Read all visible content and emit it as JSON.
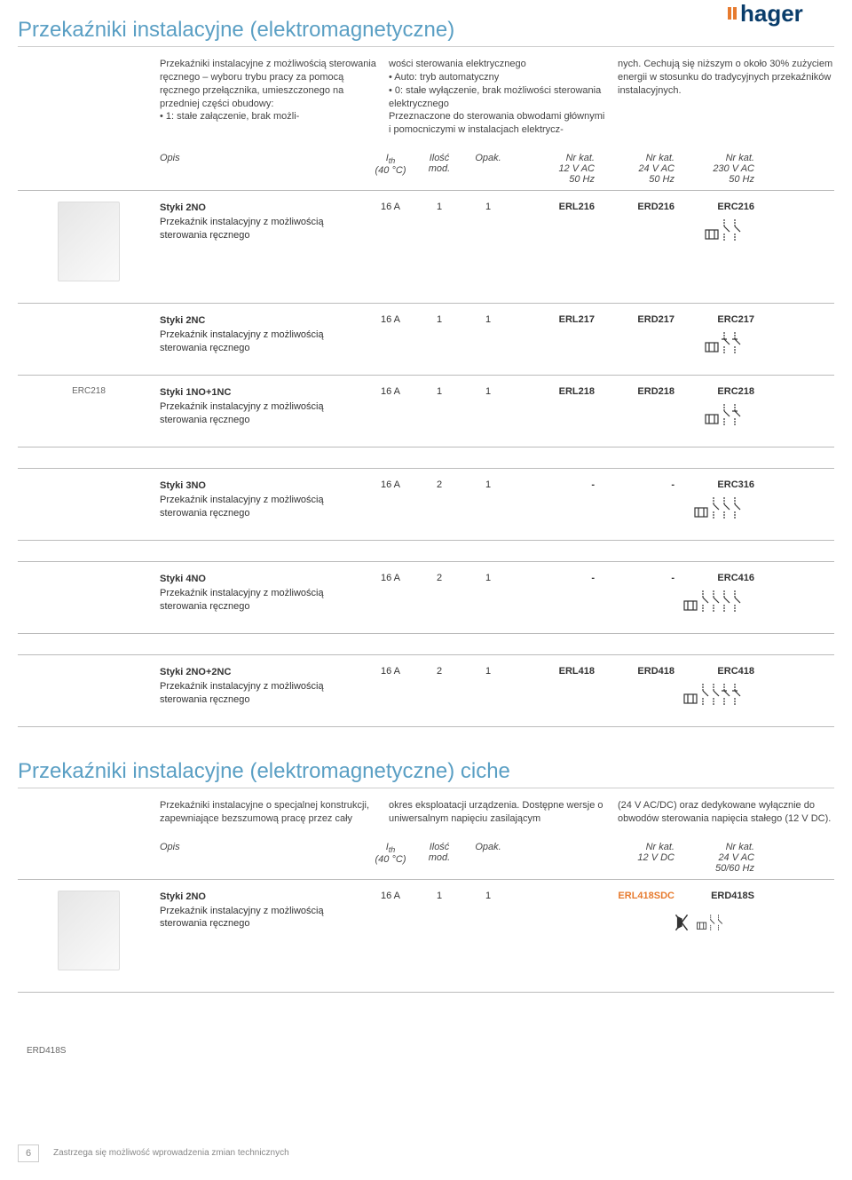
{
  "logo": {
    "brand": "hager",
    "dot_color": "#e77b2f",
    "text_color": "#0a3d6b"
  },
  "section1": {
    "title": "Przekaźniki instalacyjne (elektromagnetyczne)",
    "intro_col1": "Przekaźniki instalacyjne z możliwością sterowania ręcznego – wyboru trybu pracy za pomocą ręcznego przełącznika, umieszczonego na przedniej części obudowy:\n• 1: stałe załączenie, brak możli-",
    "intro_col2": "wości sterowania elektrycznego\n• Auto: tryb automatyczny\n• 0: stałe wyłączenie, brak możliwości sterowania elektrycznego\nPrzeznaczone do sterowania obwodami głównymi i pomocniczymi w instalacjach elektrycz-",
    "intro_col3": "nych. Cechują się niższym o około 30% zużyciem energii w stosunku do tradycyjnych przekaźników instalacyjnych.",
    "head": {
      "opis": "Opis",
      "ith_html": "I",
      "ith_sub": "th",
      "ith_line2": "(40 °C)",
      "ilosc": "Ilość",
      "ilosc_line2": "mod.",
      "opak": "Opak.",
      "cat1": "Nr kat.",
      "cat1_sub": "12 V AC\n50 Hz",
      "cat2": "Nr kat.",
      "cat2_sub": "24 V AC\n50 Hz",
      "cat3": "Nr kat.",
      "cat3_sub": "230 V AC\n50 Hz"
    },
    "rows": [
      {
        "name": "Styki 2NO",
        "desc": "Przekaźnik instalacyjny z możliwością sterowania ręcznego",
        "ith": "16 A",
        "mod": "1",
        "opak": "1",
        "c1": "ERL216",
        "c2": "ERD216",
        "c3": "ERC216",
        "sym": "2NO",
        "img": true,
        "img_label": ""
      },
      {
        "name": "Styki 2NC",
        "desc": "Przekaźnik instalacyjny z możliwością sterowania ręcznego",
        "ith": "16 A",
        "mod": "1",
        "opak": "1",
        "c1": "ERL217",
        "c2": "ERD217",
        "c3": "ERC217",
        "sym": "2NC",
        "img": false,
        "img_label": ""
      },
      {
        "name": "Styki 1NO+1NC",
        "desc": "Przekaźnik instalacyjny z możliwością sterowania ręcznego",
        "ith": "16 A",
        "mod": "1",
        "opak": "1",
        "c1": "ERL218",
        "c2": "ERD218",
        "c3": "ERC218",
        "sym": "1NO1NC",
        "img": false,
        "img_label": "ERC218",
        "gap_after": true
      },
      {
        "name": "Styki 3NO",
        "desc": "Przekaźnik instalacyjny z możliwością sterowania ręcznego",
        "ith": "16 A",
        "mod": "2",
        "opak": "1",
        "c1": "-",
        "c2": "-",
        "c3": "ERC316",
        "sym": "3NO",
        "img": false,
        "img_label": "",
        "gap_after": true
      },
      {
        "name": "Styki 4NO",
        "desc": "Przekaźnik instalacyjny z możliwością sterowania ręcznego",
        "ith": "16 A",
        "mod": "2",
        "opak": "1",
        "c1": "-",
        "c2": "-",
        "c3": "ERC416",
        "sym": "4NO",
        "img": false,
        "img_label": "",
        "gap_after": true
      },
      {
        "name": "Styki 2NO+2NC",
        "desc": "Przekaźnik instalacyjny z możliwością sterowania ręcznego",
        "ith": "16 A",
        "mod": "2",
        "opak": "1",
        "c1": "ERL418",
        "c2": "ERD418",
        "c3": "ERC418",
        "sym": "2NO2NC",
        "img": false,
        "img_label": ""
      }
    ]
  },
  "section2": {
    "title": "Przekaźniki instalacyjne (elektromagnetyczne) ciche",
    "intro_col1": "Przekaźniki instalacyjne o specjalnej konstrukcji, zapewniające bezszumową pracę przez cały",
    "intro_col2": "okres eksploatacji urządzenia. Dostępne wersje o uniwersalnym napięciu zasilającym",
    "intro_col3": "(24 V AC/DC) oraz dedykowane wyłącznie do obwodów sterowania napięcia stałego (12 V DC).",
    "head": {
      "opis": "Opis",
      "ith_html": "I",
      "ith_sub": "th",
      "ith_line2": "(40 °C)",
      "ilosc": "Ilość",
      "ilosc_line2": "mod.",
      "opak": "Opak.",
      "cat1": "Nr kat.",
      "cat1_sub": "12 V DC",
      "cat2": "Nr kat.",
      "cat2_sub": "24 V AC\n50/60 Hz"
    },
    "rows": [
      {
        "name": "Styki 2NO",
        "desc": "Przekaźnik instalacyjny z możliwością sterowania ręcznego",
        "ith": "16 A",
        "mod": "1",
        "opak": "1",
        "c1": "ERL418SDC",
        "c1_new": true,
        "c2": "ERD418S",
        "sym": "2NO_silent",
        "img": true,
        "img_label": ""
      }
    ],
    "bottom_label": "ERD418S"
  },
  "footer": {
    "page": "6",
    "text": "Zastrzega się możliwość wprowadzenia zmian technicznych"
  },
  "colors": {
    "title": "#5a9fc4",
    "accent": "#e77b2f",
    "rule": "#bbbbbb",
    "text": "#333333"
  }
}
